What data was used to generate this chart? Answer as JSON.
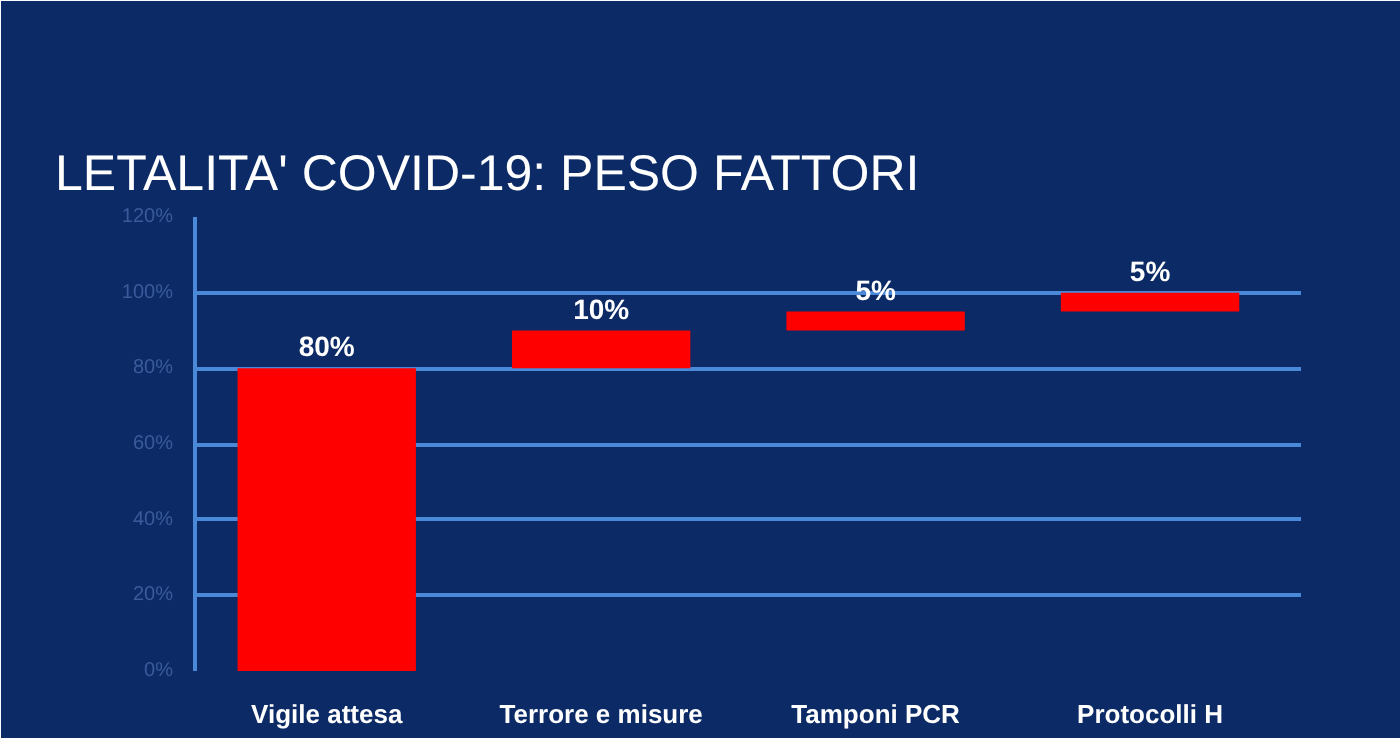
{
  "chart_data": {
    "type": "bar",
    "title": "LETALITA' COVID-19: PESO FATTORI",
    "categories": [
      "Vigile attesa",
      "Terrore e misure",
      "Tamponi PCR",
      "Protocolli H"
    ],
    "values": [
      80,
      10,
      5,
      5
    ],
    "base": [
      0,
      80,
      90,
      95
    ],
    "value_labels": [
      "80%",
      "10%",
      "5%",
      "5%"
    ],
    "color": "#ff0000",
    "ylim": [
      0,
      120
    ],
    "yticks": [
      {
        "value": 0,
        "label": "0%"
      },
      {
        "value": 20,
        "label": "20%"
      },
      {
        "value": 40,
        "label": "40%"
      },
      {
        "value": 60,
        "label": "60%"
      },
      {
        "value": 80,
        "label": "80%"
      },
      {
        "value": 100,
        "label": "100%"
      },
      {
        "value": 120,
        "label": "120%"
      }
    ],
    "grid": "y"
  }
}
